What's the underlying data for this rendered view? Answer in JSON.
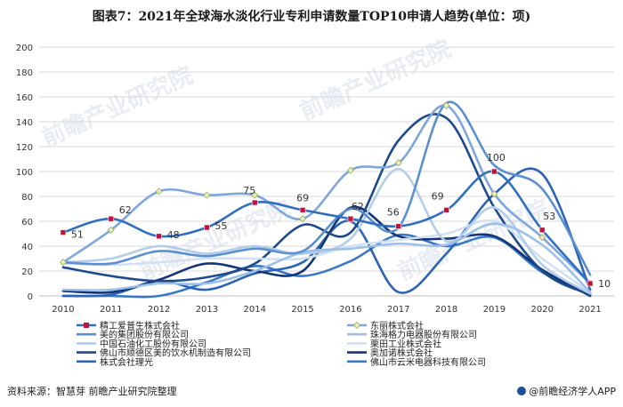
{
  "title": "图表7：2021年全球海水淡化行业专利申请数量TOP10申请人趋势(单位：项)",
  "footer": {
    "source": "资料来源：智慧芽 前瞻产业研究院整理",
    "brand": "@前瞻经济学人APP"
  },
  "watermark": "前瞻产业研究院",
  "colors": {
    "highlight_marker": "#c0143c",
    "grid": "#d9d9d9"
  },
  "chart_data": {
    "type": "line",
    "title": "图表7：2021年全球海水淡化行业专利申请数量TOP10申请人趋势(单位：项)",
    "x": [
      "2010",
      "2011",
      "2012",
      "2013",
      "2014",
      "2015",
      "2016",
      "2017",
      "2018",
      "2019",
      "2020",
      "2021"
    ],
    "ylim": [
      0,
      200
    ],
    "yticks": [
      "0",
      "20",
      "40",
      "60",
      "80",
      "100",
      "120",
      "140",
      "160",
      "180",
      "200"
    ],
    "grid": true,
    "legend_placement": "bottom",
    "series": [
      {
        "name": "精工爱普生株式会社",
        "color": "#2f6fc0",
        "marker": "square-red",
        "values": [
          51,
          62,
          48,
          55,
          75,
          69,
          62,
          56,
          69,
          100,
          53,
          10
        ],
        "labels": [
          "51",
          "62",
          "48",
          "55",
          "75",
          "69",
          "62",
          "56",
          "69",
          "100",
          "53",
          "10"
        ]
      },
      {
        "name": "东丽株式会社",
        "color": "#7fa6dc",
        "marker": "diamond",
        "values": [
          27,
          53,
          84,
          81,
          81,
          62,
          101,
          107,
          153,
          82,
          47,
          10
        ]
      },
      {
        "name": "美的集团股份有限公司",
        "color": "#5b8fd0",
        "values": [
          27,
          26,
          36,
          32,
          38,
          36,
          70,
          55,
          155,
          105,
          86,
          17
        ]
      },
      {
        "name": "珠海格力电器股份有限公司",
        "color": "#9dc0ea",
        "values": [
          5,
          5,
          10,
          10,
          20,
          35,
          38,
          42,
          41,
          58,
          41,
          3
        ]
      },
      {
        "name": "中国石油化工股份有限公司",
        "color": "#b3cde8",
        "values": [
          27,
          30,
          40,
          34,
          40,
          34,
          46,
          102,
          44,
          71,
          25,
          2
        ]
      },
      {
        "name": "栗田工业株式会社",
        "color": "#d1e1f3",
        "values": [
          26,
          25,
          27,
          30,
          30,
          30,
          40,
          45,
          50,
          60,
          30,
          3
        ]
      },
      {
        "name": "佛山市顺德区美的饮水机制造有限公司",
        "color": "#1d4a8c",
        "values": [
          23,
          16,
          12,
          15,
          26,
          57,
          51,
          125,
          143,
          71,
          20,
          1
        ]
      },
      {
        "name": "奥加诺株式会社",
        "color": "#12357a",
        "values": [
          4,
          3,
          13,
          26,
          20,
          20,
          71,
          48,
          46,
          48,
          21,
          0
        ]
      },
      {
        "name": "株式会社理光",
        "color": "#2b63b5",
        "values": [
          0,
          1,
          12,
          5,
          18,
          27,
          60,
          3,
          34,
          82,
          98,
          5
        ]
      },
      {
        "name": "佛山市云米电器科技有限公司",
        "color": "#3a78c8",
        "values": [
          0,
          0,
          0,
          11,
          24,
          16,
          28,
          49,
          40,
          47,
          19,
          2
        ]
      }
    ]
  }
}
